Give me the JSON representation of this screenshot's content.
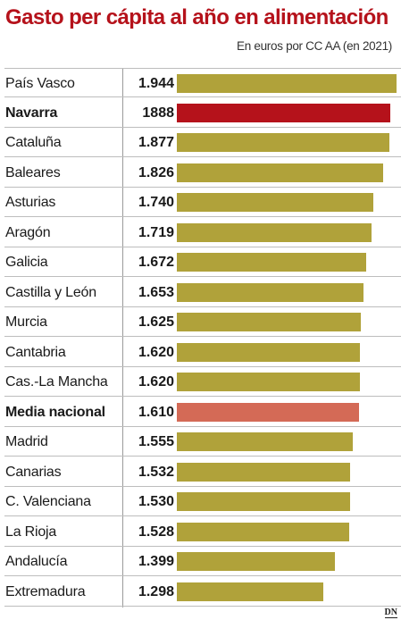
{
  "header": {
    "title": "Gasto per cápita al año en alimentación",
    "subtitle": "En euros por CC AA (en 2021)"
  },
  "brand": {
    "logo": "DN"
  },
  "colors": {
    "default_bar": "#b0a23a",
    "highlight_bar": "#b5121b",
    "average_bar": "#d46a56"
  },
  "chart_data": {
    "type": "bar",
    "orientation": "horizontal",
    "title": "Gasto per cápita al año en alimentación",
    "subtitle": "En euros por CC AA (en 2021)",
    "xlim": [
      0,
      1944
    ],
    "grid": false,
    "categories": [
      "País Vasco",
      "Navarra",
      "Cataluña",
      "Baleares",
      "Asturias",
      "Aragón",
      "Galicia",
      "Castilla y León",
      "Murcia",
      "Cantabria",
      "Cas.-La Mancha",
      "Media nacional",
      "Madrid",
      "Canarias",
      "C. Valenciana",
      "La Rioja",
      "Andalucía",
      "Extremadura"
    ],
    "values": [
      1944,
      1888,
      1877,
      1826,
      1740,
      1719,
      1672,
      1653,
      1625,
      1620,
      1620,
      1610,
      1555,
      1532,
      1530,
      1528,
      1399,
      1298
    ],
    "value_labels": [
      "1.944",
      "1888",
      "1.877",
      "1.826",
      "1.740",
      "1.719",
      "1.672",
      "1.653",
      "1.625",
      "1.620",
      "1.620",
      "1.610",
      "1.555",
      "1.532",
      "1.530",
      "1.528",
      "1.399",
      "1.298"
    ],
    "highlight": [
      "Navarra",
      "Media nacional"
    ]
  }
}
